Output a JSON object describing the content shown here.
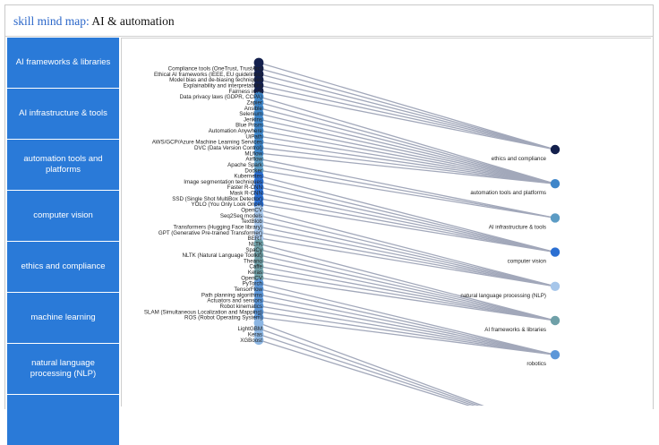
{
  "header": {
    "title_prefix": "skill mind map:",
    "title_topic": "AI & automation"
  },
  "sidebar": {
    "items": [
      {
        "label": "AI frameworks & libraries"
      },
      {
        "label": "AI infrastructure & tools"
      },
      {
        "label": "automation tools and platforms"
      },
      {
        "label": "computer vision"
      },
      {
        "label": "ethics and compliance"
      },
      {
        "label": "machine learning"
      },
      {
        "label": "natural language processing (NLP)"
      },
      {
        "label": ""
      }
    ]
  },
  "colors": {
    "nav_bg": "#2a7ad8",
    "edge": "#a2a8ba",
    "ethics and compliance": "#14204d",
    "automation tools and platforms": "#3f86c9",
    "AI infrastructure & tools": "#5c9bc4",
    "computer vision": "#2b6fd2",
    "natural language processing (NLP)": "#a6c6ea",
    "AI frameworks & libraries": "#6fa0a8",
    "robotics": "#5d97d8",
    "machine learning": "#8cb6e3"
  },
  "diagram": {
    "categories": [
      {
        "label": "ethics and compliance",
        "key": "ethics and compliance"
      },
      {
        "label": "automation tools and platforms",
        "key": "automation tools and platforms"
      },
      {
        "label": "AI infrastructure & tools",
        "key": "AI infrastructure & tools"
      },
      {
        "label": "computer vision",
        "key": "computer vision"
      },
      {
        "label": "natural language processing (NLP)",
        "key": "natural language processing (NLP)"
      },
      {
        "label": "AI frameworks & libraries",
        "key": "AI frameworks & libraries"
      },
      {
        "label": "robotics",
        "key": "robotics"
      }
    ],
    "skills": [
      {
        "label": "",
        "cat": "ethics and compliance"
      },
      {
        "label": "Compliance tools (OneTrust, TrustArc)",
        "cat": "ethics and compliance"
      },
      {
        "label": "Ethical AI frameworks (IEEE, EU guidelines)",
        "cat": "ethics and compliance"
      },
      {
        "label": "Model bias and de-biasing techniques",
        "cat": "ethics and compliance"
      },
      {
        "label": "Explainability and interpretability",
        "cat": "ethics and compliance"
      },
      {
        "label": "Fairness in AI",
        "cat": "ethics and compliance"
      },
      {
        "label": "Data privacy laws (GDPR, CCPA)",
        "cat": "automation tools and platforms"
      },
      {
        "label": "Zapier",
        "cat": "automation tools and platforms"
      },
      {
        "label": "Ansible",
        "cat": "automation tools and platforms"
      },
      {
        "label": "Selenium",
        "cat": "automation tools and platforms"
      },
      {
        "label": "Jenkins",
        "cat": "automation tools and platforms"
      },
      {
        "label": "Blue Prism",
        "cat": "automation tools and platforms"
      },
      {
        "label": "Automation Anywhere",
        "cat": "automation tools and platforms"
      },
      {
        "label": "UiPath",
        "cat": "automation tools and platforms"
      },
      {
        "label": "AWS/GCP/Azure Machine Learning Services",
        "cat": "automation tools and platforms"
      },
      {
        "label": "DVC (Data Version Control)",
        "cat": "automation tools and platforms"
      },
      {
        "label": "MLflow",
        "cat": "automation tools and platforms"
      },
      {
        "label": "Airflow",
        "cat": "AI infrastructure & tools"
      },
      {
        "label": "Apache Spark",
        "cat": "AI infrastructure & tools"
      },
      {
        "label": "Docker",
        "cat": "AI infrastructure & tools"
      },
      {
        "label": "Kubernetes",
        "cat": "computer vision"
      },
      {
        "label": "Image segmentation techniques",
        "cat": "computer vision"
      },
      {
        "label": "Faster R-CNN",
        "cat": "computer vision"
      },
      {
        "label": "Mask R-CNN",
        "cat": "computer vision"
      },
      {
        "label": "SSD (Single Shot MultiBox Detector)",
        "cat": "computer vision"
      },
      {
        "label": "YOLO (You Only Look Once)",
        "cat": "computer vision"
      },
      {
        "label": "OpenCV",
        "cat": "natural language processing (NLP)"
      },
      {
        "label": "Seq2Seq models",
        "cat": "natural language processing (NLP)"
      },
      {
        "label": "TextBlob",
        "cat": "natural language processing (NLP)"
      },
      {
        "label": "Transformers (Hugging Face library)",
        "cat": "natural language processing (NLP)"
      },
      {
        "label": "GPT (Generative Pre-trained Transformer)",
        "cat": "natural language processing (NLP)"
      },
      {
        "label": "BERT",
        "cat": "natural language processing (NLP)"
      },
      {
        "label": "NLTK",
        "cat": "AI frameworks & libraries"
      },
      {
        "label": "SpaCy",
        "cat": "AI frameworks & libraries"
      },
      {
        "label": "NLTK (Natural Language Toolkit)",
        "cat": "AI frameworks & libraries"
      },
      {
        "label": "Theano",
        "cat": "AI frameworks & libraries"
      },
      {
        "label": "Caffe",
        "cat": "AI frameworks & libraries"
      },
      {
        "label": "Keras",
        "cat": "AI frameworks & libraries"
      },
      {
        "label": "OpenCV",
        "cat": "AI frameworks & libraries"
      },
      {
        "label": "PyTorch",
        "cat": "robotics"
      },
      {
        "label": "TensorFlow",
        "cat": "robotics"
      },
      {
        "label": "Path planning algorithms",
        "cat": "robotics"
      },
      {
        "label": "Actuators and sensors",
        "cat": "robotics"
      },
      {
        "label": "Robot kinematics",
        "cat": "robotics"
      },
      {
        "label": "SLAM (Simultaneous Localization and Mapping)",
        "cat": "robotics"
      },
      {
        "label": "ROS (Robot Operating System)",
        "cat": "robotics"
      },
      {
        "label": "",
        "cat": "machine learning"
      },
      {
        "label": "LightGBM",
        "cat": "machine learning"
      },
      {
        "label": "Keras",
        "cat": "machine learning"
      },
      {
        "label": "XGBoost",
        "cat": "machine learning"
      }
    ]
  }
}
